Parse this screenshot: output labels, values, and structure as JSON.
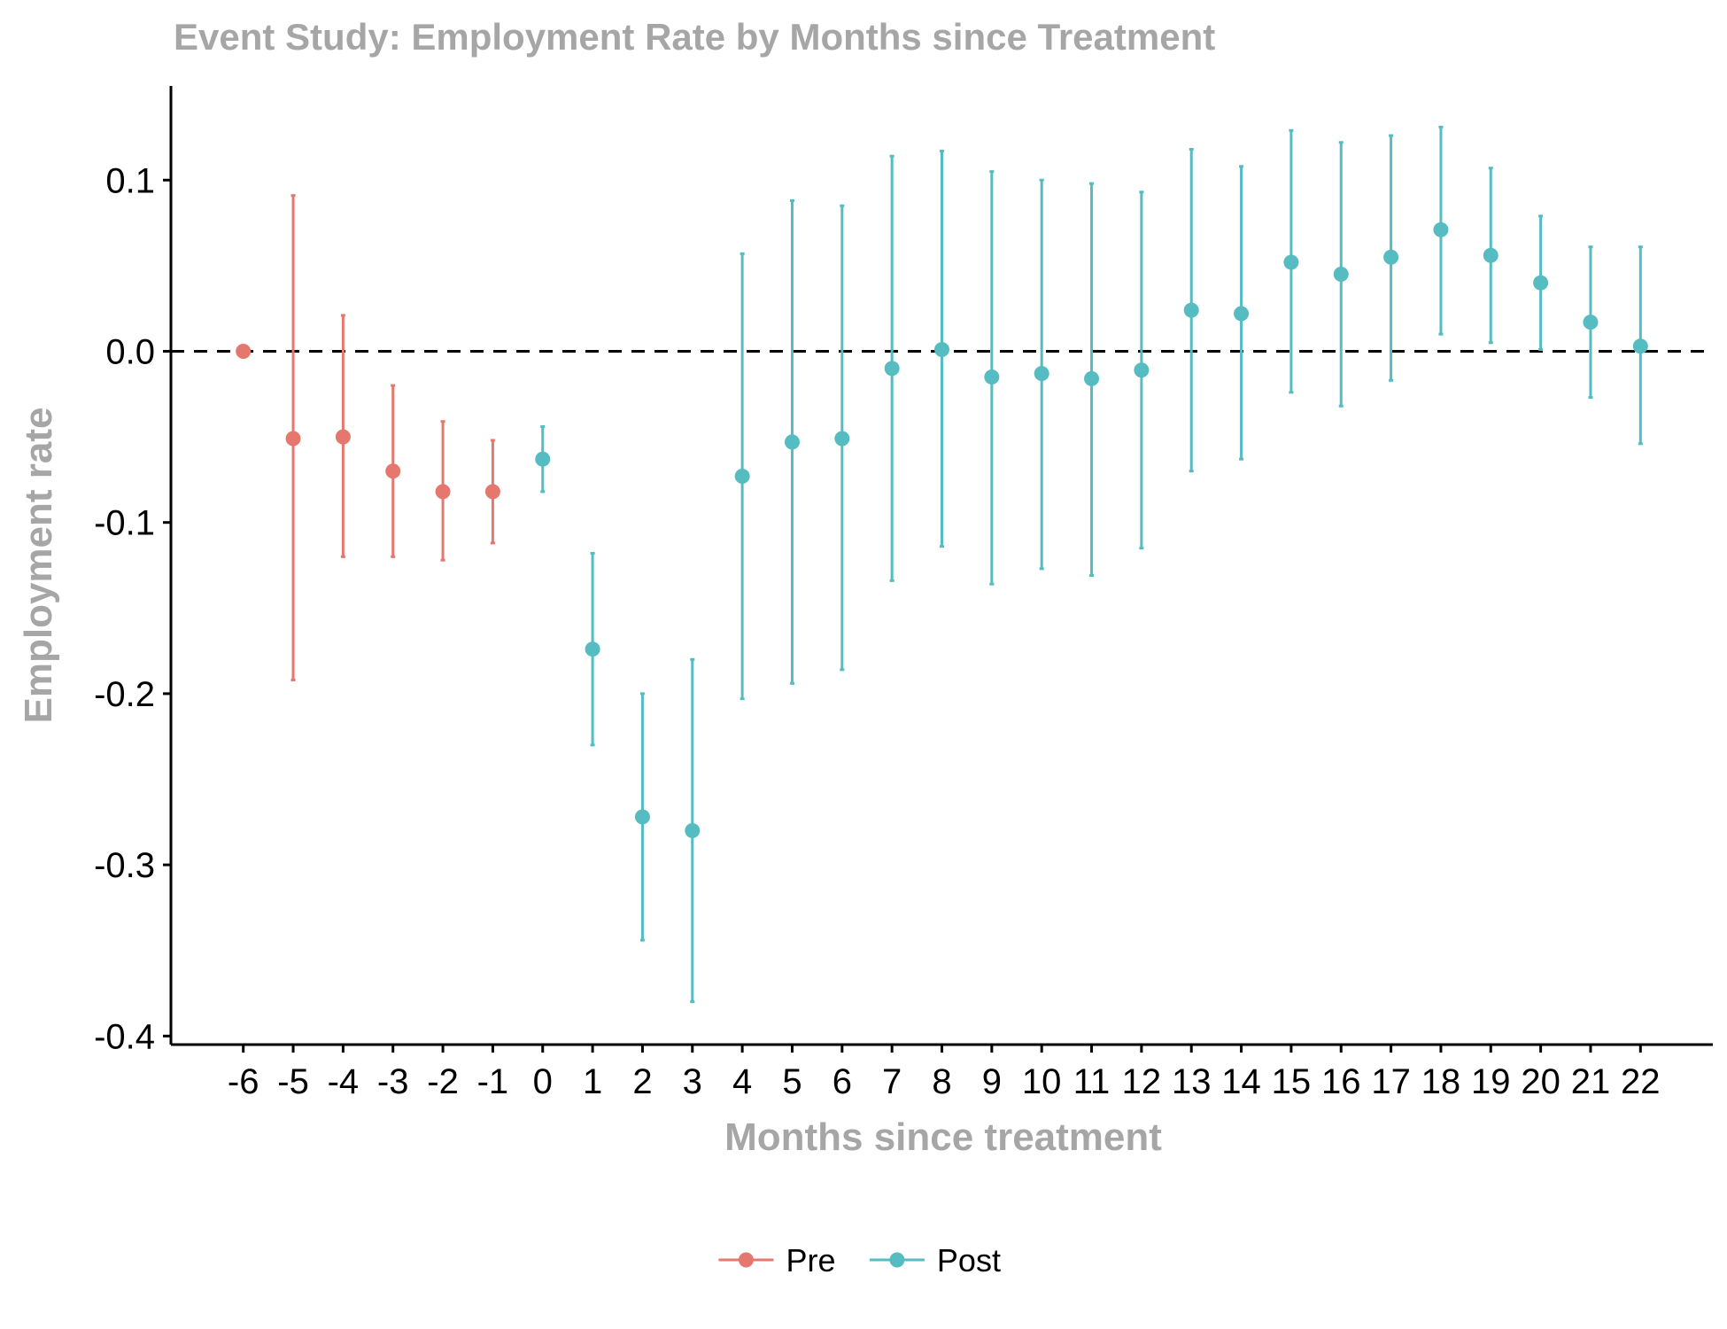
{
  "chart_data": {
    "type": "scatter",
    "title": "Event Study: Employment Rate by Months since Treatment",
    "xlabel": "Months since treatment",
    "ylabel": "Employment rate",
    "ylim": [
      -0.405,
      0.155
    ],
    "xlim": [
      -7.45,
      23.45
    ],
    "y_ticks": [
      0.1,
      0.0,
      -0.1,
      -0.2,
      -0.3,
      -0.4
    ],
    "y_tick_labels": [
      "0.1",
      "0.0",
      "-0.1",
      "-0.2",
      "-0.3",
      "-0.4"
    ],
    "x_ticks": [
      -6,
      -5,
      -4,
      -3,
      -2,
      -1,
      0,
      1,
      2,
      3,
      4,
      5,
      6,
      7,
      8,
      9,
      10,
      11,
      12,
      13,
      14,
      15,
      16,
      17,
      18,
      19,
      20,
      21,
      22
    ],
    "x_tick_labels": [
      "-6",
      "-5",
      "-4",
      "-3",
      "-2",
      "-1",
      "0",
      "1",
      "2",
      "3",
      "4",
      "5",
      "6",
      "7",
      "8",
      "9",
      "10",
      "11",
      "12",
      "13",
      "14",
      "15",
      "16",
      "17",
      "18",
      "19",
      "20",
      "21",
      "22"
    ],
    "reference_line": {
      "y": 0.0,
      "style": "dashed",
      "color": "#000000"
    },
    "grid": false,
    "legend_position": "bottom",
    "series": [
      {
        "name": "Pre",
        "color": "#E5776E",
        "points": [
          {
            "x": -6,
            "y": 0.0,
            "lo": null,
            "hi": null
          },
          {
            "x": -5,
            "y": -0.051,
            "lo": -0.192,
            "hi": 0.091
          },
          {
            "x": -4,
            "y": -0.05,
            "lo": -0.12,
            "hi": 0.021
          },
          {
            "x": -3,
            "y": -0.07,
            "lo": -0.12,
            "hi": -0.02
          },
          {
            "x": -2,
            "y": -0.082,
            "lo": -0.122,
            "hi": -0.041
          },
          {
            "x": -1,
            "y": -0.082,
            "lo": -0.112,
            "hi": -0.052
          }
        ]
      },
      {
        "name": "Post",
        "color": "#55BCC2",
        "points": [
          {
            "x": 0,
            "y": -0.063,
            "lo": -0.082,
            "hi": -0.044
          },
          {
            "x": 1,
            "y": -0.174,
            "lo": -0.23,
            "hi": -0.118
          },
          {
            "x": 2,
            "y": -0.272,
            "lo": -0.344,
            "hi": -0.2
          },
          {
            "x": 3,
            "y": -0.28,
            "lo": -0.38,
            "hi": -0.18
          },
          {
            "x": 4,
            "y": -0.073,
            "lo": -0.203,
            "hi": 0.057
          },
          {
            "x": 5,
            "y": -0.053,
            "lo": -0.194,
            "hi": 0.088
          },
          {
            "x": 6,
            "y": -0.051,
            "lo": -0.186,
            "hi": 0.085
          },
          {
            "x": 7,
            "y": -0.01,
            "lo": -0.134,
            "hi": 0.114
          },
          {
            "x": 8,
            "y": 0.001,
            "lo": -0.114,
            "hi": 0.117
          },
          {
            "x": 9,
            "y": -0.015,
            "lo": -0.136,
            "hi": 0.105
          },
          {
            "x": 10,
            "y": -0.013,
            "lo": -0.127,
            "hi": 0.1
          },
          {
            "x": 11,
            "y": -0.016,
            "lo": -0.131,
            "hi": 0.098
          },
          {
            "x": 12,
            "y": -0.011,
            "lo": -0.115,
            "hi": 0.093
          },
          {
            "x": 13,
            "y": 0.024,
            "lo": -0.07,
            "hi": 0.118
          },
          {
            "x": 14,
            "y": 0.022,
            "lo": -0.063,
            "hi": 0.108
          },
          {
            "x": 15,
            "y": 0.052,
            "lo": -0.024,
            "hi": 0.129
          },
          {
            "x": 16,
            "y": 0.045,
            "lo": -0.032,
            "hi": 0.122
          },
          {
            "x": 17,
            "y": 0.055,
            "lo": -0.017,
            "hi": 0.126
          },
          {
            "x": 18,
            "y": 0.071,
            "lo": 0.01,
            "hi": 0.131
          },
          {
            "x": 19,
            "y": 0.056,
            "lo": 0.005,
            "hi": 0.107
          },
          {
            "x": 20,
            "y": 0.04,
            "lo": 0.001,
            "hi": 0.079
          },
          {
            "x": 21,
            "y": 0.017,
            "lo": -0.027,
            "hi": 0.061
          },
          {
            "x": 22,
            "y": 0.003,
            "lo": -0.054,
            "hi": 0.061
          }
        ]
      }
    ]
  }
}
